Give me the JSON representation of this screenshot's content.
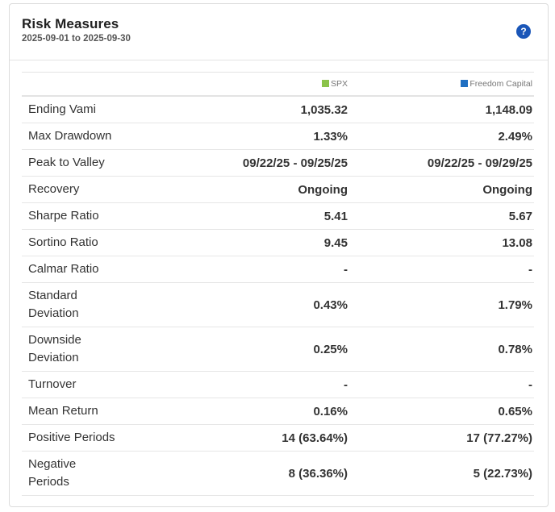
{
  "header": {
    "title": "Risk Measures",
    "date_range": "2025-09-01 to 2025-09-30",
    "help_icon": "question-circle-icon"
  },
  "columns": {
    "metric": "",
    "spx": {
      "label": "SPX",
      "color": "#8bc34a"
    },
    "fund": {
      "label": "Freedom Capital",
      "color": "#1f6fc2"
    }
  },
  "rows": [
    {
      "metric": "Ending Vami",
      "spx": "1,035.32",
      "fund": "1,148.09"
    },
    {
      "metric": "Max Drawdown",
      "spx": "1.33%",
      "fund": "2.49%"
    },
    {
      "metric": "Peak to Valley",
      "spx": "09/22/25 - 09/25/25",
      "fund": "09/22/25 - 09/29/25"
    },
    {
      "metric": "Recovery",
      "spx": "Ongoing",
      "fund": "Ongoing"
    },
    {
      "metric": "Sharpe Ratio",
      "spx": "5.41",
      "fund": "5.67"
    },
    {
      "metric": "Sortino Ratio",
      "spx": "9.45",
      "fund": "13.08"
    },
    {
      "metric": "Calmar Ratio",
      "spx": "-",
      "fund": "-"
    },
    {
      "metric": "Standard Deviation",
      "spx": "0.43%",
      "fund": "1.79%"
    },
    {
      "metric": "Downside Deviation",
      "spx": "0.25%",
      "fund": "0.78%"
    },
    {
      "metric": "Turnover",
      "spx": "-",
      "fund": "-"
    },
    {
      "metric": "Mean Return",
      "spx": "0.16%",
      "fund": "0.65%"
    },
    {
      "metric": "Positive Periods",
      "spx": "14 (63.64%)",
      "fund": "17 (77.27%)"
    },
    {
      "metric": "Negative Periods",
      "spx": "8 (36.36%)",
      "fund": "5 (22.73%)"
    }
  ]
}
